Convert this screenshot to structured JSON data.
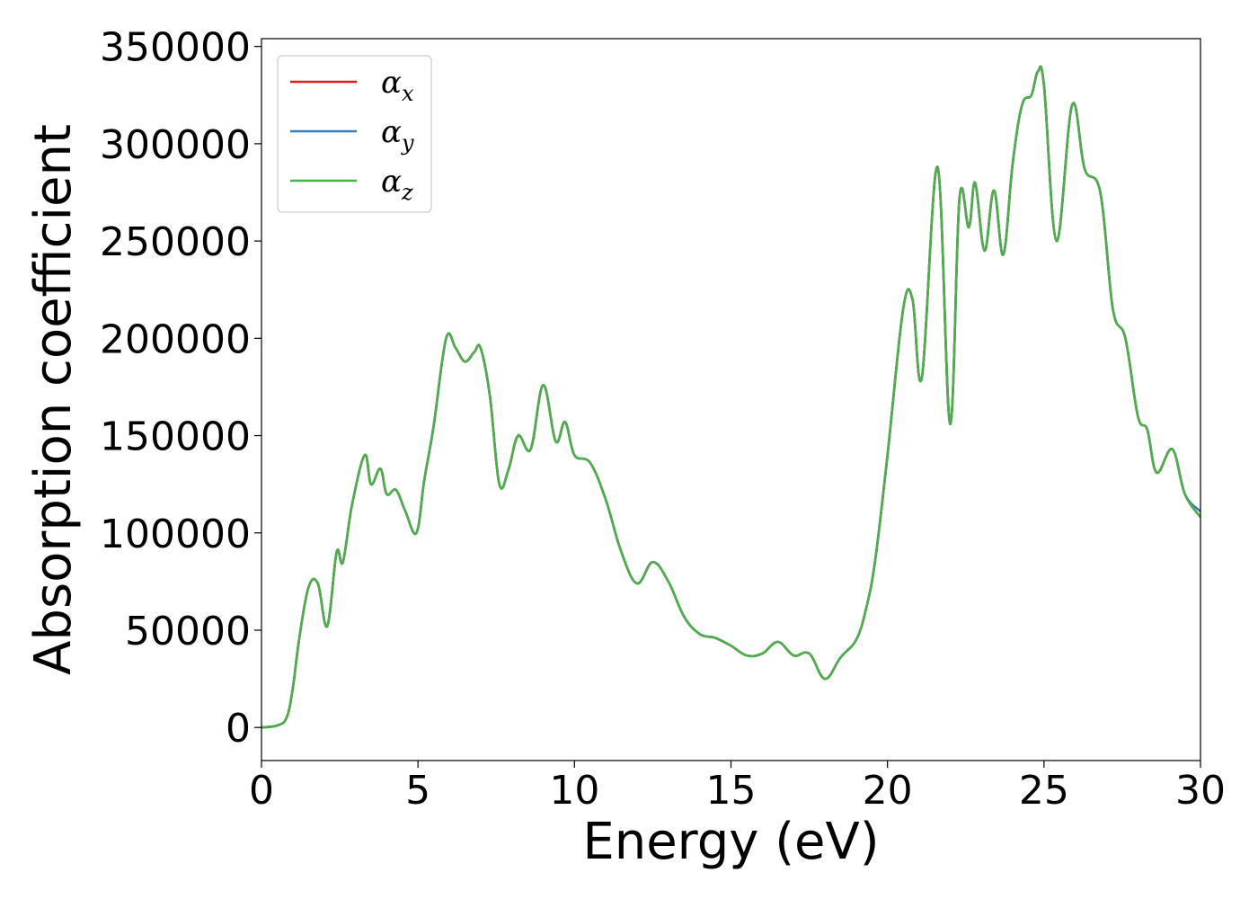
{
  "chart_data": {
    "type": "line",
    "title": "",
    "xlabel": "Energy (eV)",
    "ylabel": "Absorption coefficient",
    "xlim": [
      0,
      30
    ],
    "ylim": [
      -17000,
      354000
    ],
    "x_ticks": [
      0,
      5,
      10,
      15,
      20,
      25,
      30
    ],
    "x_tick_labels": [
      "0",
      "5",
      "10",
      "15",
      "20",
      "25",
      "30"
    ],
    "y_ticks": [
      0,
      50000,
      100000,
      150000,
      200000,
      250000,
      300000,
      350000
    ],
    "y_tick_labels": [
      "0",
      "50000",
      "100000",
      "150000",
      "200000",
      "250000",
      "300000",
      "350000"
    ],
    "grid": false,
    "legend_position": "top-left",
    "legend": [
      {
        "base": "α",
        "sub": "x",
        "color": "#e41a1c"
      },
      {
        "base": "α",
        "sub": "y",
        "color": "#377eb8"
      },
      {
        "base": "α",
        "sub": "z",
        "color": "#4daf4a"
      }
    ],
    "series": [
      {
        "name": "αx",
        "color": "#e41a1c",
        "x": [
          0,
          0.5,
          0.8,
          1.0,
          1.2,
          1.5,
          1.8,
          2.1,
          2.4,
          2.6,
          2.9,
          3.3,
          3.5,
          3.8,
          4.0,
          4.3,
          4.6,
          4.95,
          5.2,
          5.5,
          5.9,
          6.2,
          6.5,
          6.8,
          7.0,
          7.3,
          7.6,
          7.9,
          8.2,
          8.6,
          9.0,
          9.4,
          9.7,
          10.0,
          10.5,
          11.0,
          11.5,
          12.0,
          12.5,
          13.0,
          13.5,
          14.0,
          14.5,
          15.0,
          15.5,
          16.0,
          16.5,
          17.0,
          17.5,
          18.0,
          18.5,
          19.0,
          19.3,
          19.6,
          20.0,
          20.5,
          20.8,
          21.1,
          21.6,
          22.0,
          22.3,
          22.6,
          22.8,
          23.1,
          23.4,
          23.7,
          24.0,
          24.3,
          24.6,
          24.8,
          25.0,
          25.4,
          25.9,
          26.3,
          26.8,
          27.2,
          27.6,
          28.0,
          28.3,
          28.6,
          29.1,
          29.5,
          30.0
        ],
        "y": [
          0,
          1000,
          5000,
          20000,
          45000,
          72000,
          74000,
          52000,
          90000,
          85000,
          115000,
          140000,
          125000,
          133000,
          120000,
          122000,
          111000,
          100000,
          127000,
          155000,
          200000,
          195000,
          188000,
          193000,
          195000,
          170000,
          125000,
          133000,
          150000,
          143000,
          176000,
          147000,
          157000,
          140000,
          136000,
          117000,
          90000,
          74000,
          85000,
          75000,
          57000,
          48000,
          46000,
          42000,
          37000,
          38000,
          44000,
          37000,
          38000,
          25000,
          36000,
          45000,
          60000,
          85000,
          140000,
          215000,
          220000,
          180000,
          288000,
          156000,
          272000,
          257000,
          280000,
          245000,
          276000,
          243000,
          290000,
          320000,
          325000,
          337000,
          330000,
          250000,
          320000,
          287000,
          275000,
          215000,
          200000,
          160000,
          153000,
          131000,
          143000,
          120000,
          108000
        ]
      },
      {
        "name": "αy",
        "color": "#377eb8",
        "x": [
          0,
          0.5,
          0.8,
          1.0,
          1.2,
          1.5,
          1.8,
          2.1,
          2.4,
          2.6,
          2.9,
          3.3,
          3.5,
          3.8,
          4.0,
          4.3,
          4.6,
          4.95,
          5.2,
          5.5,
          5.9,
          6.2,
          6.5,
          6.8,
          7.0,
          7.3,
          7.6,
          7.9,
          8.2,
          8.6,
          9.0,
          9.4,
          9.7,
          10.0,
          10.5,
          11.0,
          11.5,
          12.0,
          12.5,
          13.0,
          13.5,
          14.0,
          14.5,
          15.0,
          15.5,
          16.0,
          16.5,
          17.0,
          17.5,
          18.0,
          18.5,
          19.0,
          19.3,
          19.6,
          20.0,
          20.5,
          20.8,
          21.1,
          21.6,
          22.0,
          22.3,
          22.6,
          22.8,
          23.1,
          23.4,
          23.7,
          24.0,
          24.3,
          24.6,
          24.8,
          25.0,
          25.4,
          25.9,
          26.3,
          26.8,
          27.2,
          27.6,
          28.0,
          28.3,
          28.6,
          29.1,
          29.5,
          30.0
        ],
        "y": [
          0,
          1000,
          5000,
          20000,
          45000,
          72000,
          74000,
          52000,
          90000,
          85000,
          115000,
          140000,
          125000,
          133000,
          120000,
          122000,
          111000,
          100000,
          127000,
          155000,
          200000,
          195000,
          188000,
          193000,
          195000,
          170000,
          125000,
          133000,
          150000,
          143000,
          176000,
          147000,
          157000,
          140000,
          136000,
          117000,
          90000,
          74000,
          85000,
          75000,
          57000,
          48000,
          46000,
          42000,
          37000,
          38000,
          44000,
          37000,
          38000,
          25000,
          36000,
          45000,
          60000,
          85000,
          140000,
          215000,
          220000,
          180000,
          288000,
          156000,
          272000,
          257000,
          280000,
          245000,
          276000,
          243000,
          290000,
          320000,
          325000,
          337000,
          330000,
          250000,
          320000,
          287000,
          275000,
          215000,
          200000,
          160000,
          153000,
          131000,
          143000,
          120000,
          111000
        ]
      },
      {
        "name": "αz",
        "color": "#4daf4a",
        "x": [
          0,
          0.5,
          0.8,
          1.0,
          1.2,
          1.5,
          1.8,
          2.1,
          2.4,
          2.6,
          2.9,
          3.3,
          3.5,
          3.8,
          4.0,
          4.3,
          4.6,
          4.95,
          5.2,
          5.5,
          5.9,
          6.2,
          6.5,
          6.8,
          7.0,
          7.3,
          7.6,
          7.9,
          8.2,
          8.6,
          9.0,
          9.4,
          9.7,
          10.0,
          10.5,
          11.0,
          11.5,
          12.0,
          12.5,
          13.0,
          13.5,
          14.0,
          14.5,
          15.0,
          15.5,
          16.0,
          16.5,
          17.0,
          17.5,
          18.0,
          18.5,
          19.0,
          19.3,
          19.6,
          20.0,
          20.5,
          20.8,
          21.1,
          21.6,
          22.0,
          22.3,
          22.6,
          22.8,
          23.1,
          23.4,
          23.7,
          24.0,
          24.3,
          24.6,
          24.8,
          25.0,
          25.4,
          25.9,
          26.3,
          26.8,
          27.2,
          27.6,
          28.0,
          28.3,
          28.6,
          29.1,
          29.5,
          30.0
        ],
        "y": [
          0,
          1000,
          5000,
          20000,
          45000,
          72000,
          74000,
          52000,
          90000,
          85000,
          115000,
          140000,
          125000,
          133000,
          120000,
          122000,
          111000,
          100000,
          127000,
          155000,
          200000,
          195000,
          188000,
          193000,
          195000,
          170000,
          125000,
          133000,
          150000,
          143000,
          176000,
          147000,
          157000,
          140000,
          136000,
          117000,
          90000,
          74000,
          85000,
          75000,
          57000,
          48000,
          46000,
          42000,
          37000,
          38000,
          44000,
          37000,
          38000,
          25000,
          36000,
          45000,
          60000,
          85000,
          140000,
          215000,
          220000,
          180000,
          288000,
          156000,
          272000,
          257000,
          280000,
          245000,
          276000,
          243000,
          290000,
          320000,
          325000,
          337000,
          330000,
          250000,
          320000,
          287000,
          275000,
          215000,
          200000,
          160000,
          153000,
          131000,
          143000,
          120000,
          108000
        ]
      }
    ]
  }
}
